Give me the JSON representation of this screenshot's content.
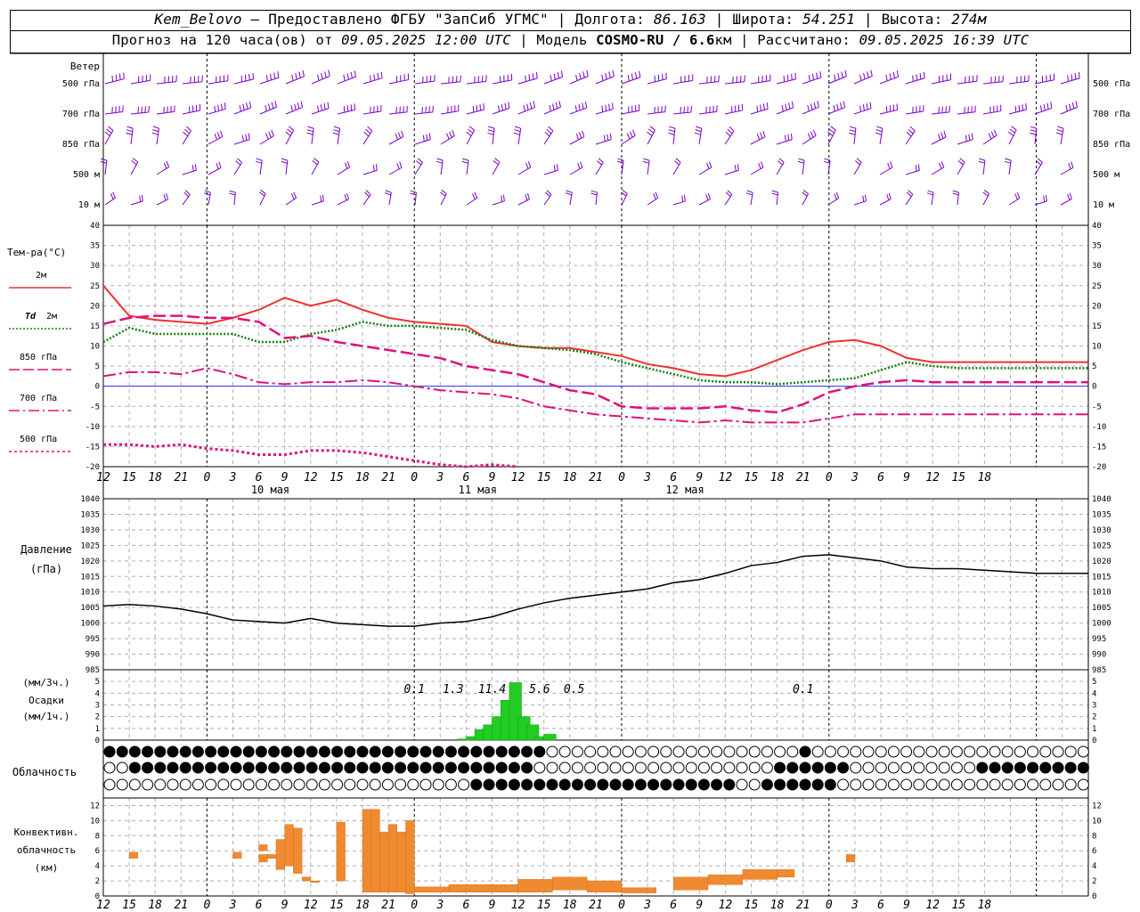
{
  "header": {
    "station": "Kem_Belovo",
    "provided": "– Предоставлено ФГБУ \"ЗапСиб УГМС\" |",
    "lon_label": "Долгота:",
    "lon": "86.163",
    "lat_label": "| Широта:",
    "lat": "54.251",
    "alt_label": "| Высота:",
    "alt": "274м",
    "forecast_label": "Прогноз на 120 часа(ов) от",
    "forecast_start": "09.05.2025 12:00 UTC",
    "model_label": "| Модель",
    "model": "COSMO-RU / 6.6",
    "model_unit": "км",
    "calc_label": "| Рассчитано:",
    "calc_time": "09.05.2025 16:39 UTC"
  },
  "colors": {
    "wind": "#7a00c8",
    "t2m": "#f03030",
    "td2m": "#128012",
    "t850": "#e0107a",
    "t700": "#e0107a",
    "t500": "#e0107a",
    "zero_line": "#3030ff",
    "precip": "#22cc22",
    "conv": "#f08a30",
    "grid": "#b0b0b0"
  },
  "wind_panel": {
    "title": "Ветер",
    "levels": [
      "500 гПа",
      "700 гПа",
      "850 гПа",
      "500 м",
      "10  м"
    ]
  },
  "temp_panel": {
    "title": "Тем-ра(°C)",
    "legend": [
      {
        "label": "2м",
        "style": "solid"
      },
      {
        "label_italic": "Td",
        "label": "2м",
        "style": "dotted"
      },
      {
        "label": "850 гПа",
        "style": "dash"
      },
      {
        "label": "700 гПа",
        "style": "dashdot"
      },
      {
        "label": "500 гПа",
        "style": "dot"
      }
    ],
    "yticks": [
      "40",
      "35",
      "30",
      "25",
      "20",
      "15",
      "10",
      "5",
      "0",
      "-5",
      "-10",
      "-15",
      "-20"
    ]
  },
  "time_axis": {
    "hour_labels": [
      "12",
      "15",
      "18",
      "21",
      "0",
      "3",
      "6",
      "9",
      "12",
      "15",
      "18",
      "21",
      "0",
      "3",
      "6",
      "9",
      "12",
      "15",
      "18",
      "21",
      "0",
      "3",
      "6",
      "9",
      "12",
      "15",
      "18",
      "21",
      "0",
      "3",
      "6",
      "9",
      "12",
      "15",
      "18"
    ],
    "day_labels": [
      "10 мая",
      "11 мая",
      "12 мая"
    ]
  },
  "pressure_panel": {
    "title1": "Давление",
    "title2": "(гПа)",
    "yticks": [
      "1040",
      "1035",
      "1030",
      "1025",
      "1020",
      "1015",
      "1010",
      "1005",
      "1000",
      "995",
      "990",
      "985"
    ]
  },
  "precip_panel": {
    "label1": "(мм/3ч.)",
    "label2": "Осадки",
    "label3": "(мм/1ч.)",
    "yticks": [
      "5",
      "4",
      "3",
      "2",
      "1",
      "0"
    ],
    "totals": [
      "0.1",
      "1.3",
      "11.4",
      "5.6",
      "0.5",
      "0.1"
    ]
  },
  "cloud_panel": {
    "label": "Облачность"
  },
  "conv_panel": {
    "label1": "Конвективн.",
    "label2": "облачность",
    "label3": "(км)",
    "yticks": [
      "12",
      "10",
      "8",
      "6",
      "4",
      "2",
      "0"
    ]
  },
  "chart_data": [
    {
      "type": "line",
      "title": "Тем-ра(°C)",
      "ylim": [
        -20,
        40
      ],
      "x_hours_from_start": [
        0,
        3,
        6,
        9,
        12,
        15,
        18,
        21,
        24,
        27,
        30,
        33,
        36,
        39,
        42,
        45,
        48,
        51,
        54,
        57,
        60,
        63,
        66,
        69,
        72,
        75,
        78,
        81,
        84,
        87,
        90,
        93,
        96,
        99,
        102,
        105,
        108,
        111,
        114
      ],
      "series": [
        {
          "name": "2м",
          "values": [
            25,
            17.5,
            16.5,
            16,
            15.5,
            17,
            19,
            22,
            20,
            21.5,
            19,
            17,
            16,
            15.5,
            15,
            11,
            10,
            9.5,
            9.5,
            8.5,
            7.5,
            5.5,
            4.5,
            3,
            2.5,
            4,
            6.5,
            9,
            11,
            11.5,
            10,
            7,
            6,
            6,
            6,
            6,
            6,
            6,
            6
          ]
        },
        {
          "name": "Td 2м",
          "values": [
            11,
            14.5,
            13,
            13,
            13,
            13,
            11,
            11,
            13,
            14,
            16,
            15,
            15,
            14.5,
            14,
            11.5,
            10,
            9.5,
            9,
            8,
            6,
            4.5,
            3,
            1.5,
            1,
            1,
            0.5,
            1,
            1.5,
            2,
            4,
            6,
            5,
            4.5,
            4.5,
            4.5,
            4.5,
            4.5,
            4.5
          ]
        },
        {
          "name": "850 гПа",
          "values": [
            15.5,
            17,
            17.5,
            17.5,
            17,
            17,
            16,
            12,
            12.5,
            11,
            10,
            9,
            8,
            7,
            5,
            4,
            3,
            1,
            -1,
            -2,
            -5,
            -5.5,
            -5.5,
            -5.5,
            -5,
            -6,
            -6.5,
            -4.5,
            -1.5,
            0,
            1,
            1.5,
            1,
            1,
            1,
            1,
            1,
            1,
            1
          ]
        },
        {
          "name": "700 гПа",
          "values": [
            2.5,
            3.5,
            3.5,
            3,
            4.5,
            3,
            1,
            0.5,
            1,
            1,
            1.5,
            1,
            0,
            -1,
            -1.5,
            -2,
            -3,
            -5,
            -6,
            -7,
            -7.5,
            -8,
            -8.5,
            -9,
            -8.5,
            -9,
            -9,
            -9,
            -8,
            -7,
            -7,
            -7,
            -7,
            -7,
            -7,
            -7,
            -7,
            -7,
            -7
          ]
        },
        {
          "name": "500 гПа",
          "values": [
            -14.5,
            -14.5,
            -15,
            -14.5,
            -15.5,
            -16,
            -17,
            -17,
            -16,
            -16,
            -16.5,
            -17.5,
            -18.5,
            -19.5,
            -20,
            -19.5,
            -20
          ]
        }
      ]
    },
    {
      "type": "line",
      "title": "Давление",
      "ylabel": "(гПа)",
      "ylim": [
        985,
        1040
      ],
      "x_hours_from_start": [
        0,
        3,
        6,
        9,
        12,
        15,
        18,
        21,
        24,
        27,
        30,
        33,
        36,
        39,
        42,
        45,
        48,
        51,
        54,
        57,
        60,
        63,
        66,
        69,
        72,
        75,
        78,
        81,
        84,
        87,
        90,
        93,
        96,
        99,
        102,
        105,
        108,
        111,
        114
      ],
      "series": [
        {
          "name": "Давление",
          "values": [
            1005.5,
            1006,
            1005.5,
            1004.5,
            1003,
            1001,
            1000.5,
            1000,
            1001.5,
            1000,
            999.5,
            999,
            999,
            1000,
            1000.5,
            1002,
            1004.5,
            1006.5,
            1008,
            1009,
            1010,
            1011,
            1013,
            1014,
            1016,
            1018.5,
            1019.5,
            1021.5,
            1022,
            1021,
            1020,
            1018,
            1017.5,
            1017.5,
            1017,
            1016.5,
            1016,
            1016,
            1016
          ]
        }
      ]
    },
    {
      "type": "bar",
      "title": "Осадки",
      "ylabel": "(мм/1ч.)",
      "ylim": [
        0,
        5
      ],
      "x_hours_from_start": [
        41,
        42,
        43,
        44,
        45,
        46,
        47,
        48,
        49,
        50,
        51
      ],
      "values": [
        0.1,
        0.3,
        0.9,
        1.3,
        2.0,
        3.4,
        4.9,
        2.0,
        1.3,
        0.3,
        0.5
      ]
    },
    {
      "type": "bar",
      "title": "Конвективн. облачность",
      "ylabel": "(км)",
      "ylim": [
        0,
        12
      ],
      "segments_km": [
        [
          3,
          4,
          5,
          5.8
        ],
        [
          15,
          16,
          5,
          5.8
        ],
        [
          18,
          19,
          4.5,
          5.5
        ],
        [
          18,
          19,
          6,
          6.8
        ],
        [
          19,
          20,
          5,
          5.5
        ],
        [
          20,
          21,
          3.5,
          7.5
        ],
        [
          21,
          22,
          4,
          9.5
        ],
        [
          22,
          23,
          3,
          9
        ],
        [
          23,
          24,
          2,
          2.5
        ],
        [
          24,
          25,
          1.8,
          2
        ],
        [
          27,
          28,
          2,
          9.8
        ],
        [
          30,
          31,
          0.5,
          11.5
        ],
        [
          31,
          32,
          0.5,
          11.5
        ],
        [
          32,
          33,
          0.5,
          8.5
        ],
        [
          33,
          34,
          0.5,
          9.5
        ],
        [
          34,
          35,
          0.5,
          8.5
        ],
        [
          35,
          36,
          0.3,
          10
        ],
        [
          36,
          40,
          0.5,
          1.2
        ],
        [
          40,
          48,
          0.5,
          1.5
        ],
        [
          48,
          52,
          0.5,
          2.2
        ],
        [
          52,
          56,
          0.8,
          2.5
        ],
        [
          56,
          60,
          0.5,
          2
        ],
        [
          60,
          64,
          0.4,
          1.1
        ],
        [
          66,
          70,
          0.8,
          2.5
        ],
        [
          70,
          74,
          1.5,
          2.8
        ],
        [
          74,
          78,
          2.2,
          3.5
        ],
        [
          78,
          80,
          2.5,
          3.5
        ],
        [
          86,
          87,
          4.5,
          5.5
        ]
      ]
    }
  ]
}
